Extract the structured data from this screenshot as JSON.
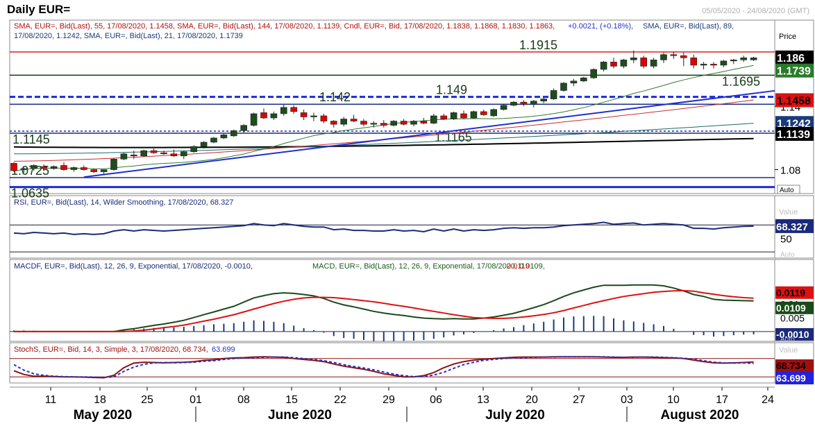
{
  "header": {
    "title": "Daily EUR=",
    "date_range": "05/05/2020 - 24/08/2020 (GMT)"
  },
  "colors": {
    "up_candle": "#1e4d1e",
    "down_candle": "#e00000",
    "sma144": "#0a2a7a",
    "sma89": "#1a6a6a",
    "sma55": "#cc2b2b",
    "sma21": "#2f7a2f",
    "trend": "#1e2fd0",
    "level": "#1a2a8a"
  },
  "chart_data": [
    {
      "type": "candlestick",
      "panel": "price",
      "legend_line1": "SMA, EUR=, Bid(Last),   55, 17/08/2020, 1.1458,   SMA, EUR=, Bid(Last),   144, 17/08/2020, 1.1139,   Cndl, EUR=, Bid,   17/08/2020, 1.1838, 1.1868, 1.1830, 1.1863,",
      "legend_change": "+0.0021, (+0.18%),",
      "legend_line1b": "SMA, EUR=, Bid(Last),   89,",
      "legend_line2": "17/08/2020, 1.1242,   SMA, EUR=, Bid(Last),   21, 17/08/2020, 1.1739",
      "axis_label": "Price",
      "auto_label": "Auto",
      "y_ticks": [
        "1.14",
        "1.08"
      ],
      "ylim": [
        1.058,
        1.2
      ],
      "x_tick_labels": [
        "11",
        "18",
        "25",
        "01",
        "08",
        "15",
        "22",
        "29",
        "06",
        "13",
        "20",
        "27",
        "03",
        "10",
        "17",
        "24"
      ],
      "months": [
        "May 2020",
        "June 2020",
        "July 2020",
        "August 2020"
      ],
      "horizontal_levels": [
        {
          "label": "1.1915",
          "value": 1.1915,
          "style": "solid",
          "color": "#e02020"
        },
        {
          "label": "1.1695",
          "value": 1.1695,
          "style": "solid",
          "color": "#0a3a0a"
        },
        {
          "label": "1.149",
          "value": 1.149,
          "style": "dashed",
          "color": "#1a2ae0"
        },
        {
          "label": "1.142",
          "value": 1.142,
          "style": "solid",
          "color": "#1a2a8a"
        },
        {
          "label": "1.1165",
          "value": 1.1165,
          "style": "dotted",
          "color": "#1a2a8a"
        },
        {
          "label": "1.1145",
          "value": 1.1145,
          "style": "solid",
          "color": "#1a2a8a"
        },
        {
          "label": "1.0725",
          "value": 1.0725,
          "style": "solid",
          "color": "#1a2a8a"
        },
        {
          "label": "1.0635",
          "value": 1.0635,
          "style": "solid",
          "color": "#1a2ae0"
        }
      ],
      "trendline": {
        "from": [
          7,
          1.073
        ],
        "to": [
          78,
          1.157
        ]
      },
      "price_badges": [
        {
          "text": "1.186",
          "value": 1.1863,
          "bg": "#000000",
          "fg": "#ffffff"
        },
        {
          "text": "1.1739",
          "value": 1.1739,
          "bg": "#2a7a2a",
          "fg": "#ffffff"
        },
        {
          "text": "1.1458",
          "value": 1.1458,
          "bg": "#dd1111",
          "fg": "#000000"
        },
        {
          "text": "1.1242",
          "value": 1.1242,
          "bg": "#1a3a7a",
          "fg": "#ffffff"
        },
        {
          "text": "1.1139",
          "value": 1.1139,
          "bg": "#000000",
          "fg": "#ffffff"
        }
      ],
      "ohlc": [
        [
          1.086,
          1.087,
          1.078,
          1.079
        ],
        [
          1.08,
          1.082,
          1.077,
          1.081
        ],
        [
          1.081,
          1.085,
          1.079,
          1.084
        ],
        [
          1.083,
          1.085,
          1.08,
          1.081
        ],
        [
          1.081,
          1.084,
          1.08,
          1.083
        ],
        [
          1.084,
          1.087,
          1.079,
          1.08
        ],
        [
          1.08,
          1.083,
          1.078,
          1.082
        ],
        [
          1.082,
          1.084,
          1.079,
          1.08
        ],
        [
          1.08,
          1.081,
          1.077,
          1.078
        ],
        [
          1.078,
          1.08,
          1.075,
          1.08
        ],
        [
          1.08,
          1.091,
          1.079,
          1.09
        ],
        [
          1.09,
          1.096,
          1.089,
          1.095
        ],
        [
          1.094,
          1.098,
          1.09,
          1.093
        ],
        [
          1.093,
          1.099,
          1.092,
          1.098
        ],
        [
          1.098,
          1.1,
          1.095,
          1.096
        ],
        [
          1.096,
          1.098,
          1.094,
          1.095
        ],
        [
          1.095,
          1.099,
          1.092,
          1.093
        ],
        [
          1.093,
          1.098,
          1.09,
          1.097
        ],
        [
          1.097,
          1.103,
          1.096,
          1.102
        ],
        [
          1.102,
          1.107,
          1.1,
          1.106
        ],
        [
          1.106,
          1.111,
          1.105,
          1.11
        ],
        [
          1.11,
          1.114,
          1.109,
          1.113
        ],
        [
          1.112,
          1.118,
          1.111,
          1.117
        ],
        [
          1.117,
          1.123,
          1.115,
          1.122
        ],
        [
          1.122,
          1.134,
          1.121,
          1.133
        ],
        [
          1.134,
          1.138,
          1.128,
          1.129
        ],
        [
          1.129,
          1.135,
          1.127,
          1.133
        ],
        [
          1.133,
          1.142,
          1.131,
          1.139
        ],
        [
          1.139,
          1.141,
          1.133,
          1.135
        ],
        [
          1.134,
          1.137,
          1.127,
          1.13
        ],
        [
          1.13,
          1.134,
          1.126,
          1.131
        ],
        [
          1.131,
          1.133,
          1.124,
          1.126
        ],
        [
          1.126,
          1.127,
          1.12,
          1.123
        ],
        [
          1.123,
          1.13,
          1.121,
          1.128
        ],
        [
          1.128,
          1.132,
          1.125,
          1.126
        ],
        [
          1.126,
          1.128,
          1.121,
          1.123
        ],
        [
          1.123,
          1.126,
          1.12,
          1.124
        ],
        [
          1.124,
          1.127,
          1.12,
          1.122
        ],
        [
          1.122,
          1.127,
          1.121,
          1.126
        ],
        [
          1.126,
          1.128,
          1.122,
          1.123
        ],
        [
          1.123,
          1.127,
          1.121,
          1.126
        ],
        [
          1.126,
          1.129,
          1.123,
          1.124
        ],
        [
          1.124,
          1.133,
          1.123,
          1.131
        ],
        [
          1.131,
          1.133,
          1.127,
          1.128
        ],
        [
          1.128,
          1.135,
          1.127,
          1.134
        ],
        [
          1.133,
          1.136,
          1.128,
          1.129
        ],
        [
          1.129,
          1.136,
          1.128,
          1.135
        ],
        [
          1.135,
          1.137,
          1.131,
          1.132
        ],
        [
          1.131,
          1.138,
          1.13,
          1.137
        ],
        [
          1.137,
          1.142,
          1.136,
          1.141
        ],
        [
          1.141,
          1.145,
          1.14,
          1.144
        ],
        [
          1.144,
          1.146,
          1.14,
          1.142
        ],
        [
          1.142,
          1.146,
          1.139,
          1.145
        ],
        [
          1.145,
          1.148,
          1.143,
          1.147
        ],
        [
          1.147,
          1.157,
          1.146,
          1.155
        ],
        [
          1.155,
          1.163,
          1.154,
          1.162
        ],
        [
          1.162,
          1.166,
          1.159,
          1.164
        ],
        [
          1.164,
          1.168,
          1.163,
          1.167
        ],
        [
          1.167,
          1.176,
          1.166,
          1.175
        ],
        [
          1.175,
          1.183,
          1.173,
          1.182
        ],
        [
          1.182,
          1.186,
          1.176,
          1.178
        ],
        [
          1.178,
          1.185,
          1.176,
          1.184
        ],
        [
          1.184,
          1.193,
          1.181,
          1.186
        ],
        [
          1.186,
          1.188,
          1.176,
          1.178
        ],
        [
          1.178,
          1.186,
          1.176,
          1.184
        ],
        [
          1.184,
          1.191,
          1.181,
          1.189
        ],
        [
          1.189,
          1.192,
          1.185,
          1.188
        ],
        [
          1.188,
          1.191,
          1.178,
          1.186
        ],
        [
          1.186,
          1.189,
          1.176,
          1.179
        ],
        [
          1.179,
          1.182,
          1.175,
          1.18
        ],
        [
          1.18,
          1.182,
          1.176,
          1.179
        ],
        [
          1.179,
          1.184,
          1.177,
          1.183
        ],
        [
          1.183,
          1.185,
          1.18,
          1.184
        ],
        [
          1.184,
          1.188,
          1.182,
          1.186
        ],
        [
          1.184,
          1.187,
          1.183,
          1.186
        ]
      ],
      "series": [
        {
          "name": "SMA 144",
          "values": [
            1.098,
            1.1139
          ]
        },
        {
          "name": "SMA 89",
          "values": [
            1.09,
            1.1242
          ]
        },
        {
          "name": "SMA 55",
          "values": [
            1.085,
            1.1458
          ]
        },
        {
          "name": "SMA 21",
          "values": [
            1.081,
            1.1739
          ]
        }
      ]
    },
    {
      "type": "line",
      "panel": "rsi",
      "legend": "RSI, EUR=, Bid(Last),   14, Wilder Smoothing, 17/08/2020, 68.327",
      "axis_label": "Value",
      "auto_label": "Auto",
      "y_ticks": [
        "50"
      ],
      "ylim": [
        25,
        95
      ],
      "levels": [
        70,
        30
      ],
      "badge": {
        "text": "68.327",
        "value": 68.327
      },
      "values": [
        58,
        57,
        59,
        58,
        57,
        58,
        56,
        57,
        56,
        57,
        61,
        63,
        61,
        63,
        62,
        61,
        62,
        63,
        64,
        65,
        66,
        67,
        68,
        69,
        72,
        70,
        69,
        72,
        70,
        68,
        67,
        67,
        63,
        64,
        62,
        62,
        61,
        61,
        63,
        61,
        62,
        60,
        64,
        61,
        64,
        61,
        63,
        62,
        63,
        65,
        66,
        65,
        66,
        66,
        67,
        69,
        70,
        71,
        72,
        74,
        71,
        72,
        73,
        70,
        71,
        72,
        71,
        70,
        65,
        65,
        64,
        66,
        67,
        68,
        68.3
      ]
    },
    {
      "type": "line",
      "panel": "macd",
      "legend_a": "MACDF, EUR=, Bid(Last),   12, 26, 9, Exponential, 17/08/2020, -0.0010,",
      "legend_b": "MACD, EUR=, Bid(Last),   12, 26, 9, Exponential, 17/08/2020, 0.0109,",
      "legend_c": "0.0119",
      "y_ticks": [
        "0.01",
        "0.005"
      ],
      "ylim": [
        -0.0025,
        0.0205
      ],
      "auto_label": "Auto",
      "badges": [
        {
          "text": "0.0119",
          "value": 0.0119
        },
        {
          "text": "0.0109",
          "value": 0.0109
        },
        {
          "text": "-0.0010",
          "value": -0.001
        }
      ],
      "series": [
        {
          "name": "MACD",
          "values": [
            0.0,
            0.0,
            0.0,
            0.0,
            0.0,
            0.0,
            0.0,
            0.0,
            0.0,
            0.0,
            0.0,
            0.0006,
            0.001,
            0.0016,
            0.0022,
            0.0027,
            0.0033,
            0.004,
            0.005,
            0.006,
            0.007,
            0.008,
            0.009,
            0.0105,
            0.012,
            0.0128,
            0.0135,
            0.0138,
            0.0136,
            0.0132,
            0.0127,
            0.0118,
            0.0105,
            0.0095,
            0.0088,
            0.008,
            0.0072,
            0.0066,
            0.0061,
            0.0057,
            0.0052,
            0.0048,
            0.0046,
            0.0045,
            0.0046,
            0.0045,
            0.0045,
            0.0048,
            0.0052,
            0.0058,
            0.0065,
            0.0075,
            0.0085,
            0.0096,
            0.011,
            0.0125,
            0.0138,
            0.0148,
            0.0158,
            0.0165,
            0.0165,
            0.0165,
            0.0166,
            0.0166,
            0.0166,
            0.0163,
            0.0155,
            0.0145,
            0.0132,
            0.0125,
            0.0115,
            0.0112,
            0.0111,
            0.011,
            0.0109
          ]
        },
        {
          "name": "Signal",
          "values": [
            0.0,
            0.0,
            0.0,
            0.0,
            0.0,
            0.0,
            0.0,
            0.0,
            0.0,
            0.0,
            0.0,
            0.0,
            0.0002,
            0.0005,
            0.0009,
            0.0014,
            0.0018,
            0.0023,
            0.003,
            0.0037,
            0.0044,
            0.0052,
            0.006,
            0.007,
            0.008,
            0.009,
            0.01,
            0.0108,
            0.0115,
            0.012,
            0.0122,
            0.0122,
            0.0121,
            0.0118,
            0.0114,
            0.011,
            0.0106,
            0.0101,
            0.0095,
            0.009,
            0.0084,
            0.0078,
            0.0072,
            0.0066,
            0.006,
            0.0055,
            0.005,
            0.0048,
            0.0047,
            0.0047,
            0.0049,
            0.0052,
            0.0056,
            0.0061,
            0.0067,
            0.0075,
            0.0084,
            0.0093,
            0.0102,
            0.011,
            0.0118,
            0.0125,
            0.013,
            0.0135,
            0.014,
            0.0143,
            0.0145,
            0.0146,
            0.0144,
            0.0138,
            0.0133,
            0.0128,
            0.0124,
            0.0121,
            0.0119
          ]
        }
      ],
      "histogram": [
        0.0004,
        0.0004,
        0.0003,
        0.0002,
        0.0001,
        0.0,
        0.0,
        0.0,
        -0.0001,
        0.0,
        0.0002,
        0.0006,
        0.0008,
        0.0011,
        0.0013,
        0.0013,
        0.0015,
        0.0017,
        0.002,
        0.0023,
        0.0026,
        0.0028,
        0.003,
        0.0035,
        0.004,
        0.0038,
        0.0035,
        0.003,
        0.0021,
        0.0012,
        0.0005,
        -0.0004,
        -0.0016,
        -0.0023,
        -0.0026,
        -0.003,
        -0.0034,
        -0.0035,
        -0.0034,
        -0.0033,
        -0.0032,
        -0.003,
        -0.0026,
        -0.0021,
        -0.0014,
        -0.001,
        -0.0005,
        0.0,
        0.0005,
        0.0011,
        0.0016,
        0.0023,
        0.0029,
        0.0035,
        0.0043,
        0.005,
        0.0054,
        0.0055,
        0.0056,
        0.0055,
        0.0047,
        0.004,
        0.0036,
        0.0031,
        0.0026,
        0.002,
        0.001,
        0.0,
        -0.0012,
        -0.0013,
        -0.0018,
        -0.0016,
        -0.0013,
        -0.0011,
        -0.001
      ]
    },
    {
      "type": "line",
      "panel": "stoch",
      "legend_a": "StochS, EUR=, Bid,   14, 3, Simple, 3, 17/08/2020, 68.734,",
      "legend_b": "63.699",
      "axis_label": "Value",
      "auto_label": "Auto",
      "ylim": [
        0,
        100
      ],
      "levels": [
        80,
        20
      ],
      "badges": [
        {
          "text": "68.734",
          "value": 68.734
        },
        {
          "text": "63.699",
          "value": 63.699
        }
      ],
      "series": [
        {
          "name": "%K",
          "values": [
            40,
            28,
            22,
            22,
            21,
            20,
            20,
            19,
            18,
            17,
            25,
            50,
            65,
            68,
            67,
            66,
            67,
            68,
            70,
            74,
            76,
            80,
            82,
            83,
            85,
            86,
            85,
            84,
            80,
            77,
            74,
            70,
            62,
            55,
            50,
            45,
            38,
            30,
            25,
            20,
            20,
            24,
            34,
            50,
            62,
            70,
            75,
            78,
            80,
            82,
            84,
            85,
            85,
            85,
            86,
            86,
            86,
            86,
            86,
            85,
            84,
            84,
            85,
            85,
            84,
            83,
            82,
            80,
            75,
            70,
            66,
            65,
            66,
            67,
            68.7
          ]
        },
        {
          "name": "%D",
          "values": [
            60,
            42,
            30,
            25,
            22,
            21,
            20,
            20,
            19,
            18,
            20,
            38,
            52,
            61,
            66,
            67,
            66,
            67,
            68,
            71,
            73,
            77,
            80,
            82,
            83,
            84,
            85,
            85,
            83,
            80,
            77,
            73,
            67,
            60,
            54,
            49,
            43,
            36,
            29,
            24,
            21,
            21,
            26,
            35,
            48,
            60,
            68,
            74,
            77,
            80,
            82,
            83,
            84,
            85,
            85,
            86,
            86,
            86,
            86,
            86,
            85,
            84,
            84,
            85,
            85,
            84,
            83,
            81,
            78,
            73,
            68,
            66,
            65,
            66,
            63.7
          ]
        }
      ]
    }
  ]
}
